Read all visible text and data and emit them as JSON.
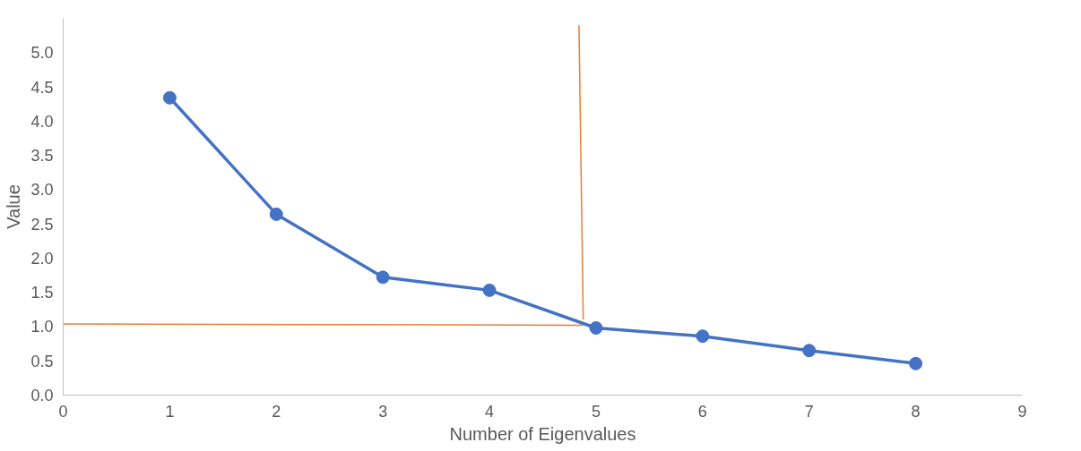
{
  "chart_data": {
    "type": "line",
    "xlabel": "Number of Eigenvalues",
    "ylabel": "Value",
    "x": [
      1,
      2,
      3,
      4,
      5,
      6,
      7,
      8
    ],
    "series": [
      {
        "color": "#4472c4",
        "values": [
          4.34,
          2.64,
          1.72,
          1.53,
          0.98,
          0.86,
          0.65,
          0.46
        ],
        "marker": "circle"
      },
      {
        "color": "#ed7d31",
        "x": [
          0,
          4.88
        ],
        "values": [
          1.04,
          1.02
        ],
        "marker": "none"
      },
      {
        "color": "#ed7d31",
        "x": [
          4.84,
          4.88
        ],
        "values": [
          5.4,
          1.1
        ],
        "marker": "none"
      }
    ],
    "xlim": [
      0,
      9
    ],
    "xticks": [
      0,
      1,
      2,
      3,
      4,
      5,
      6,
      7,
      8,
      9
    ],
    "ylim": [
      0,
      5.5
    ],
    "yticks": [
      {
        "value": 0,
        "label": "0.0"
      },
      {
        "value": 0.5,
        "label": "0.5"
      },
      {
        "value": 1,
        "label": "1.0"
      },
      {
        "value": 1.5,
        "label": "1.5"
      },
      {
        "value": 2,
        "label": "2.0"
      },
      {
        "value": 2.5,
        "label": "2.5"
      },
      {
        "value": 3,
        "label": "3.0"
      },
      {
        "value": 3.5,
        "label": "3.5"
      },
      {
        "value": 4,
        "label": "4.0"
      },
      {
        "value": 4.5,
        "label": "4.5"
      },
      {
        "value": 5,
        "label": "5.0"
      }
    ],
    "grid": false,
    "line_style": "solid"
  }
}
